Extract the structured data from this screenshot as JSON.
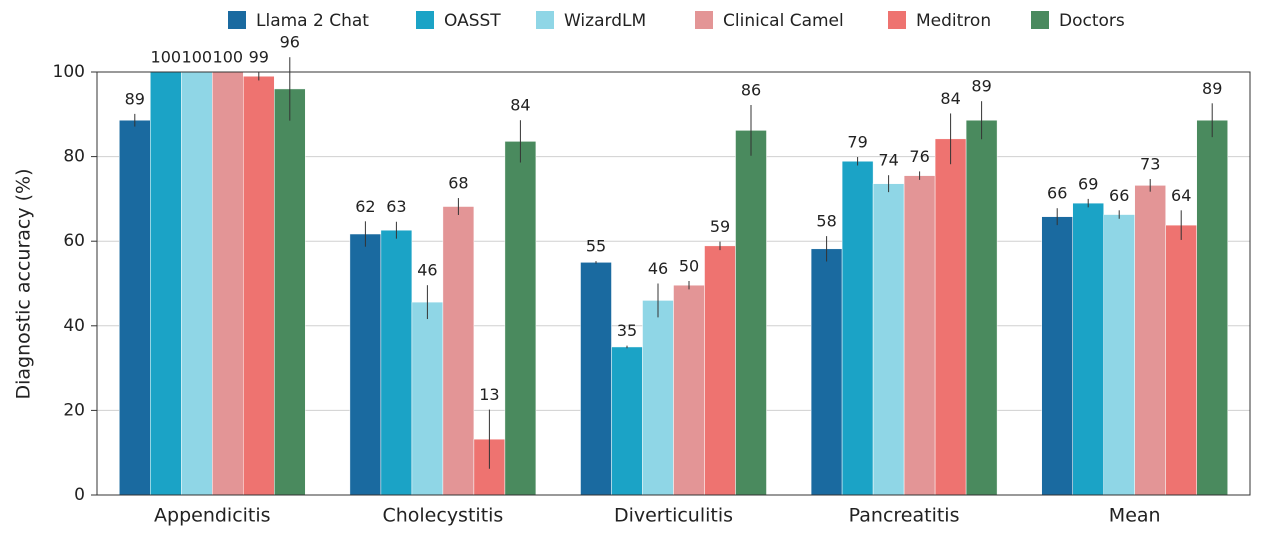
{
  "chart_data": {
    "type": "bar",
    "ylabel": "Diagnostic accuracy (%)",
    "categories": [
      "Appendicitis",
      "Cholecystitis",
      "Diverticulitis",
      "Pancreatitis",
      "Mean"
    ],
    "series": [
      {
        "name": "Llama 2 Chat",
        "color": "#1a6aa0",
        "values": [
          88.6,
          61.7,
          55,
          58.2,
          65.8
        ],
        "value_labels": [
          "89",
          "62",
          "55",
          "58",
          "66"
        ],
        "errors": [
          1.5,
          3,
          0.3,
          3,
          2
        ]
      },
      {
        "name": "OASST",
        "color": "#1ba3c6",
        "values": [
          100,
          62.6,
          35,
          78.9,
          69
        ],
        "value_labels": [
          "100",
          "63",
          "35",
          "79",
          "69"
        ],
        "errors": [
          0,
          2,
          0.3,
          1,
          1
        ]
      },
      {
        "name": "WizardLM",
        "color": "#8fd6e6",
        "values": [
          100,
          45.6,
          46,
          73.6,
          66.3
        ],
        "value_labels": [
          "100",
          "46",
          "46",
          "74",
          "66"
        ],
        "errors": [
          0,
          4,
          4,
          2,
          1
        ]
      },
      {
        "name": "Clinical Camel",
        "color": "#e39596",
        "values": [
          100,
          68.2,
          49.6,
          75.5,
          73.2
        ],
        "value_labels": [
          "100",
          "68",
          "50",
          "76",
          "73"
        ],
        "errors": [
          0,
          2,
          1,
          1,
          1.5
        ]
      },
      {
        "name": "Meditron",
        "color": "#ee7370",
        "values": [
          99,
          13.2,
          58.9,
          84.2,
          63.8
        ],
        "value_labels": [
          "99",
          "13",
          "59",
          "84",
          "64"
        ],
        "errors": [
          1,
          7,
          1,
          6,
          3.5
        ]
      },
      {
        "name": "Doctors",
        "color": "#4a8a5e",
        "values": [
          96,
          83.6,
          86.2,
          88.6,
          88.6
        ],
        "value_labels": [
          "96",
          "84",
          "86",
          "89",
          "89"
        ],
        "errors": [
          7.5,
          5,
          6,
          4.5,
          4
        ]
      }
    ],
    "ylim": [
      0,
      100
    ],
    "yticks": [
      0,
      20,
      40,
      60,
      80,
      100
    ],
    "grid": true,
    "legend": "top"
  }
}
